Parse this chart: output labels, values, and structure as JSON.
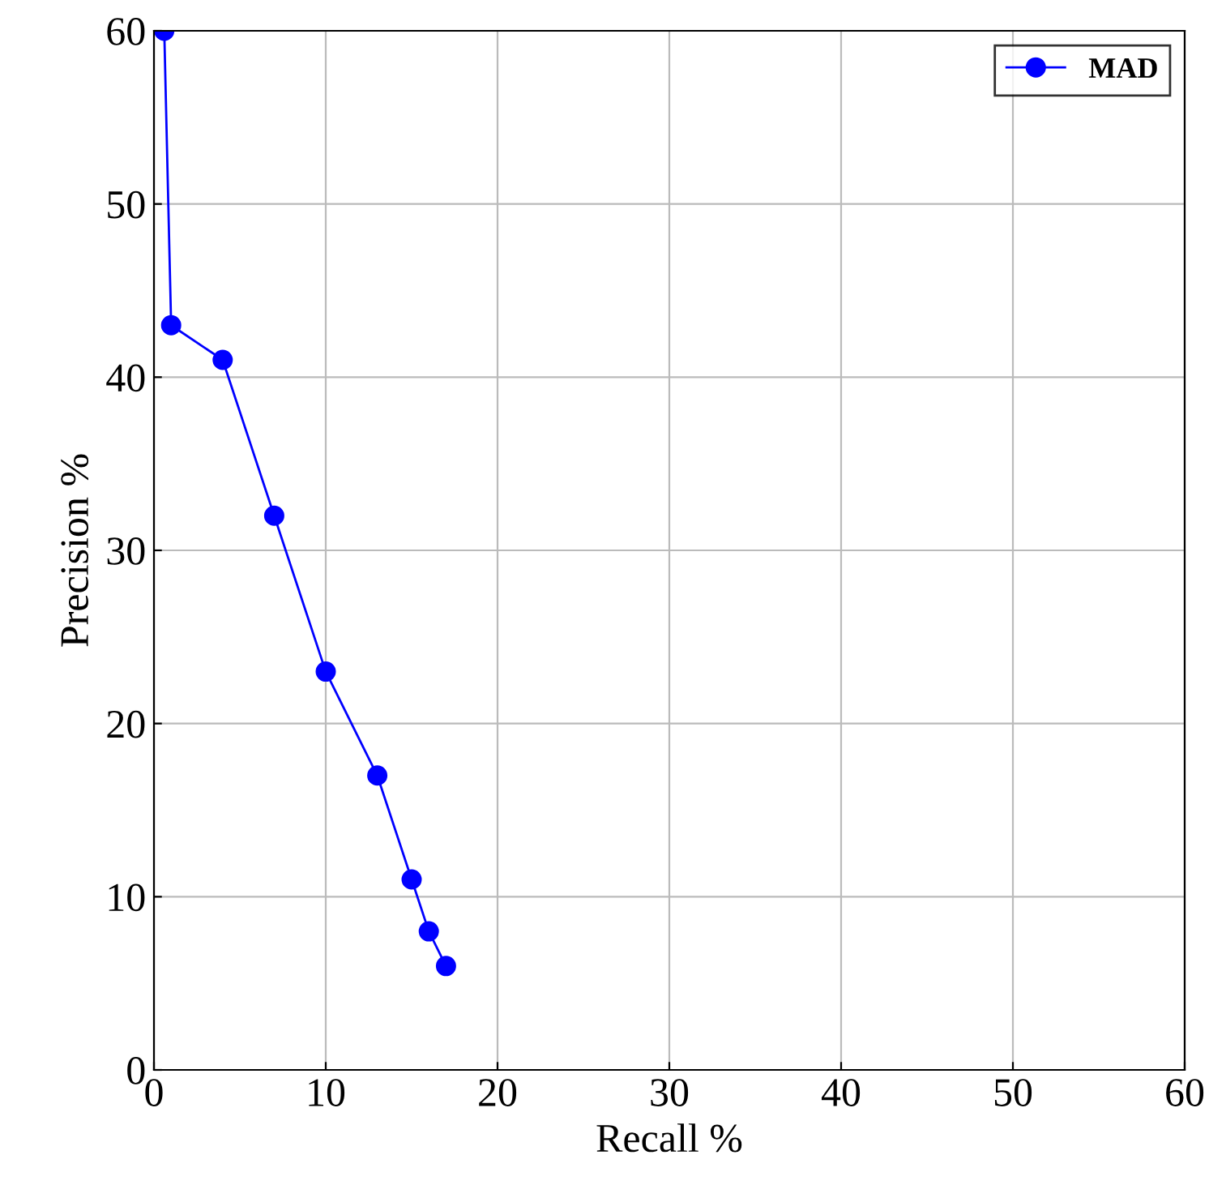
{
  "chart_data": {
    "type": "line",
    "xlabel": "Recall %",
    "ylabel": "Precision %",
    "x": [
      0.6,
      1,
      4,
      7,
      10,
      13,
      15,
      16,
      17
    ],
    "series": [
      {
        "name": "MAD",
        "color": "#0000ff",
        "values": [
          60,
          43,
          41,
          32,
          23,
          17,
          11,
          8,
          6
        ]
      }
    ],
    "xlim": [
      0,
      60
    ],
    "ylim": [
      0,
      60
    ],
    "xticks": [
      0,
      10,
      20,
      30,
      40,
      50,
      60
    ],
    "yticks": [
      0,
      10,
      20,
      30,
      40,
      50,
      60
    ],
    "grid": true,
    "legend": "top right",
    "marker": "circle",
    "line_style": "solid"
  }
}
